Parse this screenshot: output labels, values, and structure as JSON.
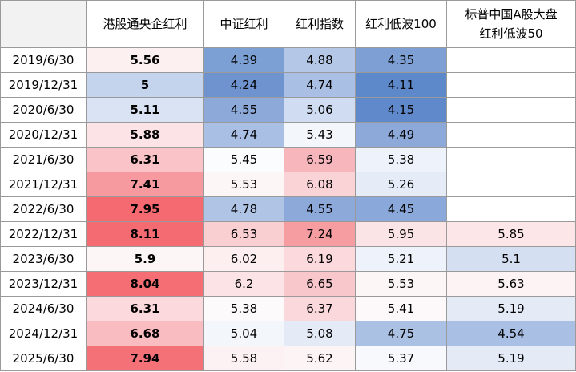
{
  "headers": [
    "",
    "港股通央企红利",
    "中证红利",
    "红利指数",
    "红利低波100",
    "标普中国A股大盘\n红利低波50"
  ],
  "rows": [
    {
      "date": "2019/6/30",
      "values": [
        "5.56",
        "4.39",
        "4.88",
        "4.35",
        ""
      ]
    },
    {
      "date": "2019/12/31",
      "values": [
        "5",
        "4.24",
        "4.74",
        "4.11",
        ""
      ]
    },
    {
      "date": "2020/6/30",
      "values": [
        "5.11",
        "4.55",
        "5.06",
        "4.15",
        ""
      ]
    },
    {
      "date": "2020/12/31",
      "values": [
        "5.88",
        "4.74",
        "5.43",
        "4.49",
        ""
      ]
    },
    {
      "date": "2021/6/30",
      "values": [
        "6.31",
        "5.45",
        "6.59",
        "5.38",
        ""
      ]
    },
    {
      "date": "2021/12/31",
      "values": [
        "7.41",
        "5.53",
        "6.08",
        "5.26",
        ""
      ]
    },
    {
      "date": "2022/6/30",
      "values": [
        "7.95",
        "4.78",
        "4.55",
        "4.45",
        ""
      ]
    },
    {
      "date": "2022/12/31",
      "values": [
        "8.11",
        "6.53",
        "7.24",
        "5.95",
        "5.85"
      ]
    },
    {
      "date": "2023/6/30",
      "values": [
        "5.9",
        "6.02",
        "6.19",
        "5.21",
        "5.1"
      ]
    },
    {
      "date": "2023/12/31",
      "values": [
        "8.04",
        "6.2",
        "6.65",
        "5.53",
        "5.63"
      ]
    },
    {
      "date": "2024/6/30",
      "values": [
        "6.31",
        "5.38",
        "6.37",
        "5.41",
        "5.19"
      ]
    },
    {
      "date": "2024/12/31",
      "values": [
        "6.68",
        "5.04",
        "5.08",
        "4.75",
        "4.54"
      ]
    },
    {
      "date": "2025/6/30",
      "values": [
        "7.94",
        "5.58",
        "5.62",
        "5.37",
        "5.19"
      ]
    }
  ],
  "cell_colors": [
    [
      "#fdf0f1",
      "#7c9fd4",
      "#b4c7e7",
      "#7d9fd4",
      "#ffffff"
    ],
    [
      "#c5d4ed",
      "#6e93cf",
      "#a9bfe3",
      "#5d88c9",
      "#ffffff"
    ],
    [
      "#d9e3f3",
      "#8ca9d9",
      "#d0dcf1",
      "#5f89ca",
      "#ffffff"
    ],
    [
      "#fce4e6",
      "#a9bfe3",
      "#f3f6fb",
      "#8ca9d9",
      "#ffffff"
    ],
    [
      "#f9c3c7",
      "#fbfcfe",
      "#f6b6bc",
      "#eef2fa",
      "#ffffff"
    ],
    [
      "#f79a9f",
      "#fdf6f7",
      "#fad3d6",
      "#e5ecf7",
      "#ffffff"
    ],
    [
      "#f46a70",
      "#b0c4e5",
      "#8ca9d9",
      "#8aa8d9",
      "#ffffff"
    ],
    [
      "#f46b71",
      "#f9cfd2",
      "#f69da2",
      "#fbe4e6",
      "#fde6e8"
    ],
    [
      "#fdf6f7",
      "#fdeef0",
      "#fbd9dc",
      "#eef2fa",
      "#d5dff2"
    ],
    [
      "#f46e74",
      "#fce3e6",
      "#f8c7cb",
      "#fdf6f7",
      "#fdf3f4"
    ],
    [
      "#fcd9dc",
      "#fdfafb",
      "#fad8db",
      "#fdf9fa",
      "#e5ebf6"
    ],
    [
      "#f9bcc1",
      "#f3f6fb",
      "#e4eaf6",
      "#abc1e4",
      "#a9bfe3"
    ],
    [
      "#f47178",
      "#fdf2f3",
      "#fdf4f5",
      "#f8f9fd",
      "#e5ebf6"
    ]
  ]
}
